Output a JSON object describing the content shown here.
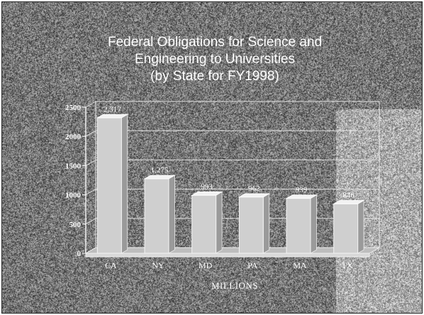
{
  "colors": {
    "background": "#7a7a7a",
    "bar_front": "#cfcfcf",
    "bar_top": "#f2f2f2",
    "bar_side": "#9a9a9a",
    "text": "#ffffff"
  },
  "chart_data": {
    "type": "bar",
    "title_lines": [
      "Federal Obligations for Science and",
      "Engineering to Universities",
      "(by State for FY1998)"
    ],
    "categories": [
      "CA",
      "NY",
      "MD",
      "PA",
      "MA",
      "TX"
    ],
    "values": [
      2317,
      1275,
      993,
      962,
      939,
      846
    ],
    "data_labels": [
      "2,317",
      "1,275",
      "993",
      "962",
      "939",
      "846"
    ],
    "xlabel": "MILLIONS",
    "ylabel": "",
    "ylim": [
      0,
      2500
    ],
    "yticks": [
      0,
      500,
      1000,
      1500,
      2000,
      2500
    ],
    "ytick_labels": [
      "0",
      "500",
      "1000",
      "1500",
      "2000",
      "2500"
    ],
    "grid": true,
    "three_d": true
  }
}
